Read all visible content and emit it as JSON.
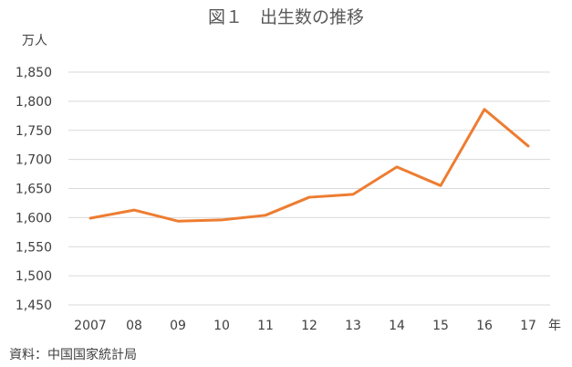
{
  "chart_data": {
    "type": "line",
    "title": "図１　出生数の推移",
    "ylabel": "万人",
    "xlabel": "年",
    "source": "資料：中国国家統計局",
    "categories": [
      "2007",
      "08",
      "09",
      "10",
      "11",
      "12",
      "13",
      "14",
      "15",
      "16",
      "17"
    ],
    "yticks": [
      "1,450",
      "1,500",
      "1,550",
      "1,600",
      "1,650",
      "1,700",
      "1,750",
      "1,800",
      "1,850"
    ],
    "ylim": [
      1450,
      1850
    ],
    "grid": true,
    "series": [
      {
        "values": [
          1599,
          1613,
          1594,
          1596,
          1604,
          1635,
          1640,
          1687,
          1655,
          1786,
          1723
        ],
        "color": "#ED7D31"
      }
    ],
    "gridColor": "#D9D9D9",
    "textColor": "#404040"
  }
}
